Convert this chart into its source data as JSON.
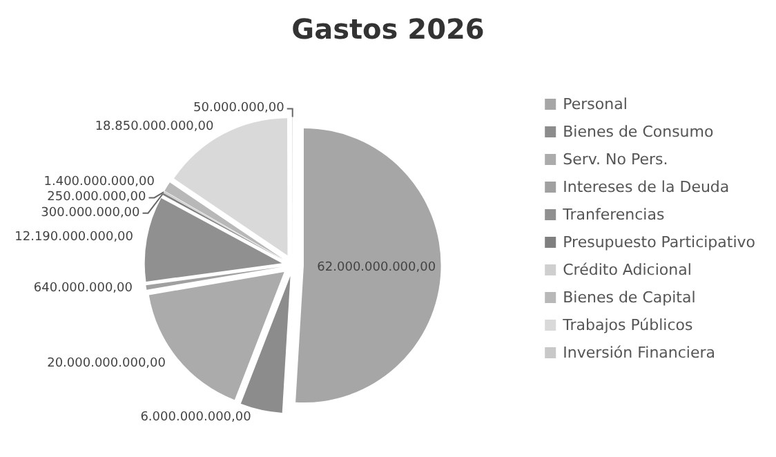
{
  "chart_data": {
    "type": "pie",
    "title": "Gastos 2026",
    "categories": [
      "Personal",
      "Bienes de Consumo",
      "Serv. No Pers.",
      "Intereses de la Deuda",
      "Tranferencias",
      "Presupuesto Participativo",
      "Crédito Adicional",
      "Bienes de Capital",
      "Trabajos Públicos",
      "Inversión Financiera"
    ],
    "values": [
      62000000000,
      6000000000,
      20000000000,
      640000000,
      12190000000,
      300000000,
      250000000,
      1400000000,
      18850000000,
      50000000
    ],
    "value_labels": [
      "62.000.000.000,00",
      "6.000.000.000,00",
      "20.000.000.000,00",
      "640.000.000,00",
      "12.190.000.000,00",
      "300.000.000,00",
      "250.000.000,00",
      "1.400.000.000,00",
      "18.850.000.000,00",
      "50.000.000,00"
    ],
    "colors": [
      "#a6a6a6",
      "#8c8c8c",
      "#ababab",
      "#a0a0a0",
      "#909090",
      "#7f7f7f",
      "#cfcfcf",
      "#b8b8b8",
      "#d9d9d9",
      "#c8c8c8"
    ],
    "legend": "right"
  }
}
